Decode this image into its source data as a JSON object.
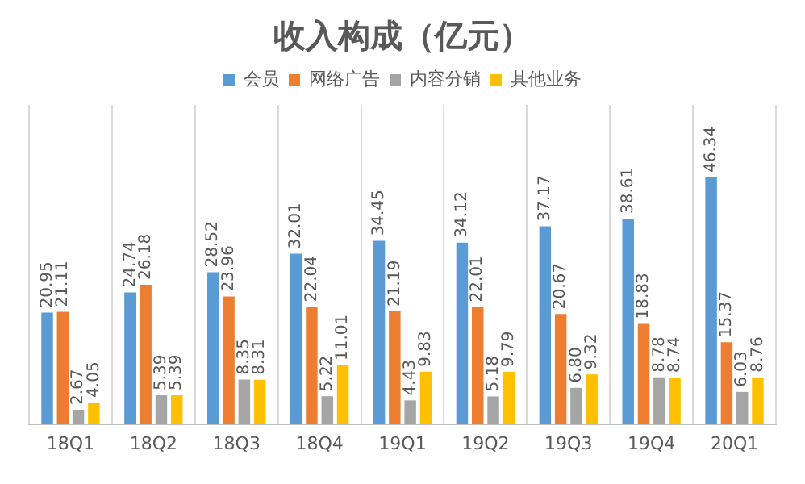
{
  "chart_data": {
    "type": "bar",
    "title": "收入构成（亿元）",
    "categories": [
      "18Q1",
      "18Q2",
      "18Q3",
      "18Q4",
      "19Q1",
      "19Q2",
      "19Q3",
      "19Q4",
      "20Q1"
    ],
    "series": [
      {
        "name": "会员",
        "color": "#5b9bd5",
        "values": [
          20.95,
          24.74,
          28.52,
          32.01,
          34.45,
          34.12,
          37.17,
          38.61,
          46.34
        ],
        "value_labels": [
          "20.95",
          "24.74",
          "28.52",
          "32.01",
          "34.45",
          "34.12",
          "37.17",
          "38.61",
          "46.34"
        ]
      },
      {
        "name": "网络广告",
        "color": "#ed7d31",
        "values": [
          21.11,
          26.18,
          23.96,
          22.04,
          21.19,
          22.01,
          20.67,
          18.83,
          15.37
        ],
        "value_labels": [
          "21.11",
          "26.18",
          "23.96",
          "22.04",
          "21.19",
          "22.01",
          "20.67",
          "18.83",
          "15.37"
        ]
      },
      {
        "name": "内容分销",
        "color": "#a5a5a5",
        "values": [
          2.67,
          5.39,
          8.35,
          5.22,
          4.43,
          5.18,
          6.8,
          8.78,
          6.03
        ],
        "value_labels": [
          "2.67",
          "5.39",
          "8.35",
          "5.22",
          "4.43",
          "5.18",
          "6.80",
          "8.78",
          "6.03"
        ]
      },
      {
        "name": "其他业务",
        "color": "#ffc000",
        "values": [
          4.05,
          5.39,
          8.31,
          11.01,
          9.83,
          9.79,
          9.32,
          8.74,
          8.76
        ],
        "value_labels": [
          "4.05",
          "5.39",
          "8.31",
          "11.01",
          "9.83",
          "9.79",
          "9.32",
          "8.74",
          "8.76"
        ]
      }
    ],
    "grid": "x",
    "legend": "top"
  }
}
